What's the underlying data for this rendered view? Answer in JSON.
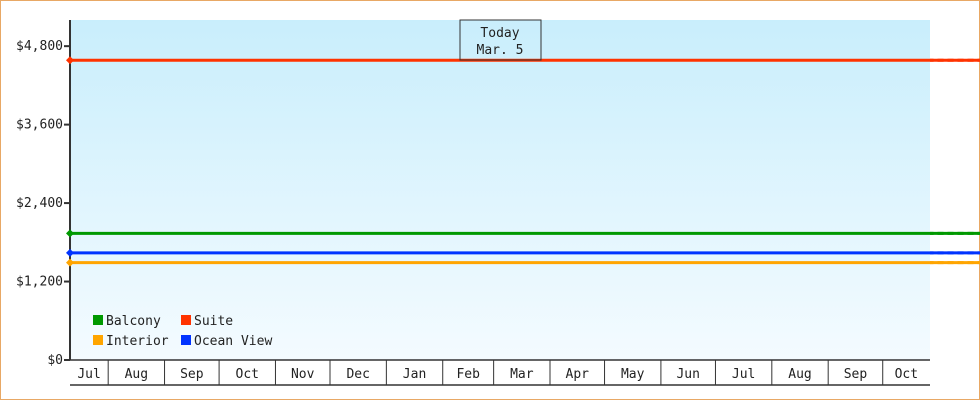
{
  "chart_data": {
    "type": "line",
    "title": "",
    "xlabel": "",
    "ylabel": "",
    "ylim": [
      0,
      5200
    ],
    "yticks": [
      0,
      1200,
      2400,
      3600,
      4800
    ],
    "ytick_labels": [
      "$0",
      "$1,200",
      "$2,400",
      "$3,600",
      "$4,800"
    ],
    "xlim": [
      "Jul 11",
      "Oct 27"
    ],
    "month_labels": [
      "Jul",
      "Aug",
      "Sep",
      "Oct",
      "Nov",
      "Dec",
      "Jan",
      "Feb",
      "Mar",
      "Apr",
      "May",
      "Jun",
      "Jul",
      "Aug",
      "Sep",
      "Oct"
    ],
    "grid": false,
    "background_gradient": [
      "#c9eefc",
      "#f4fbff"
    ],
    "today_marker": {
      "line1": "Today",
      "line2": "Mar. 5",
      "date": "Mar 5"
    },
    "legend_placement": "bottom-left",
    "series": [
      {
        "name": "Balcony",
        "color": "#009900",
        "x": [
          "Jul 11",
          "Mar 5"
        ],
        "values": [
          1937,
          1937
        ],
        "projected_to": "Oct 27"
      },
      {
        "name": "Suite",
        "color": "#ff3300",
        "x": [
          "Jul 11",
          "Mar 5"
        ],
        "values": [
          4585,
          4585
        ],
        "projected_to": "Oct 27"
      },
      {
        "name": "Interior",
        "color": "#ffa500",
        "x": [
          "Jul 11",
          "Mar 5"
        ],
        "values": [
          1490,
          1490
        ],
        "projected_to": "Oct 27"
      },
      {
        "name": "Ocean View",
        "color": "#0033ff",
        "x": [
          "Jul 11",
          "Mar 5"
        ],
        "values": [
          1639,
          1639
        ],
        "projected_to": "Oct 27"
      }
    ]
  }
}
